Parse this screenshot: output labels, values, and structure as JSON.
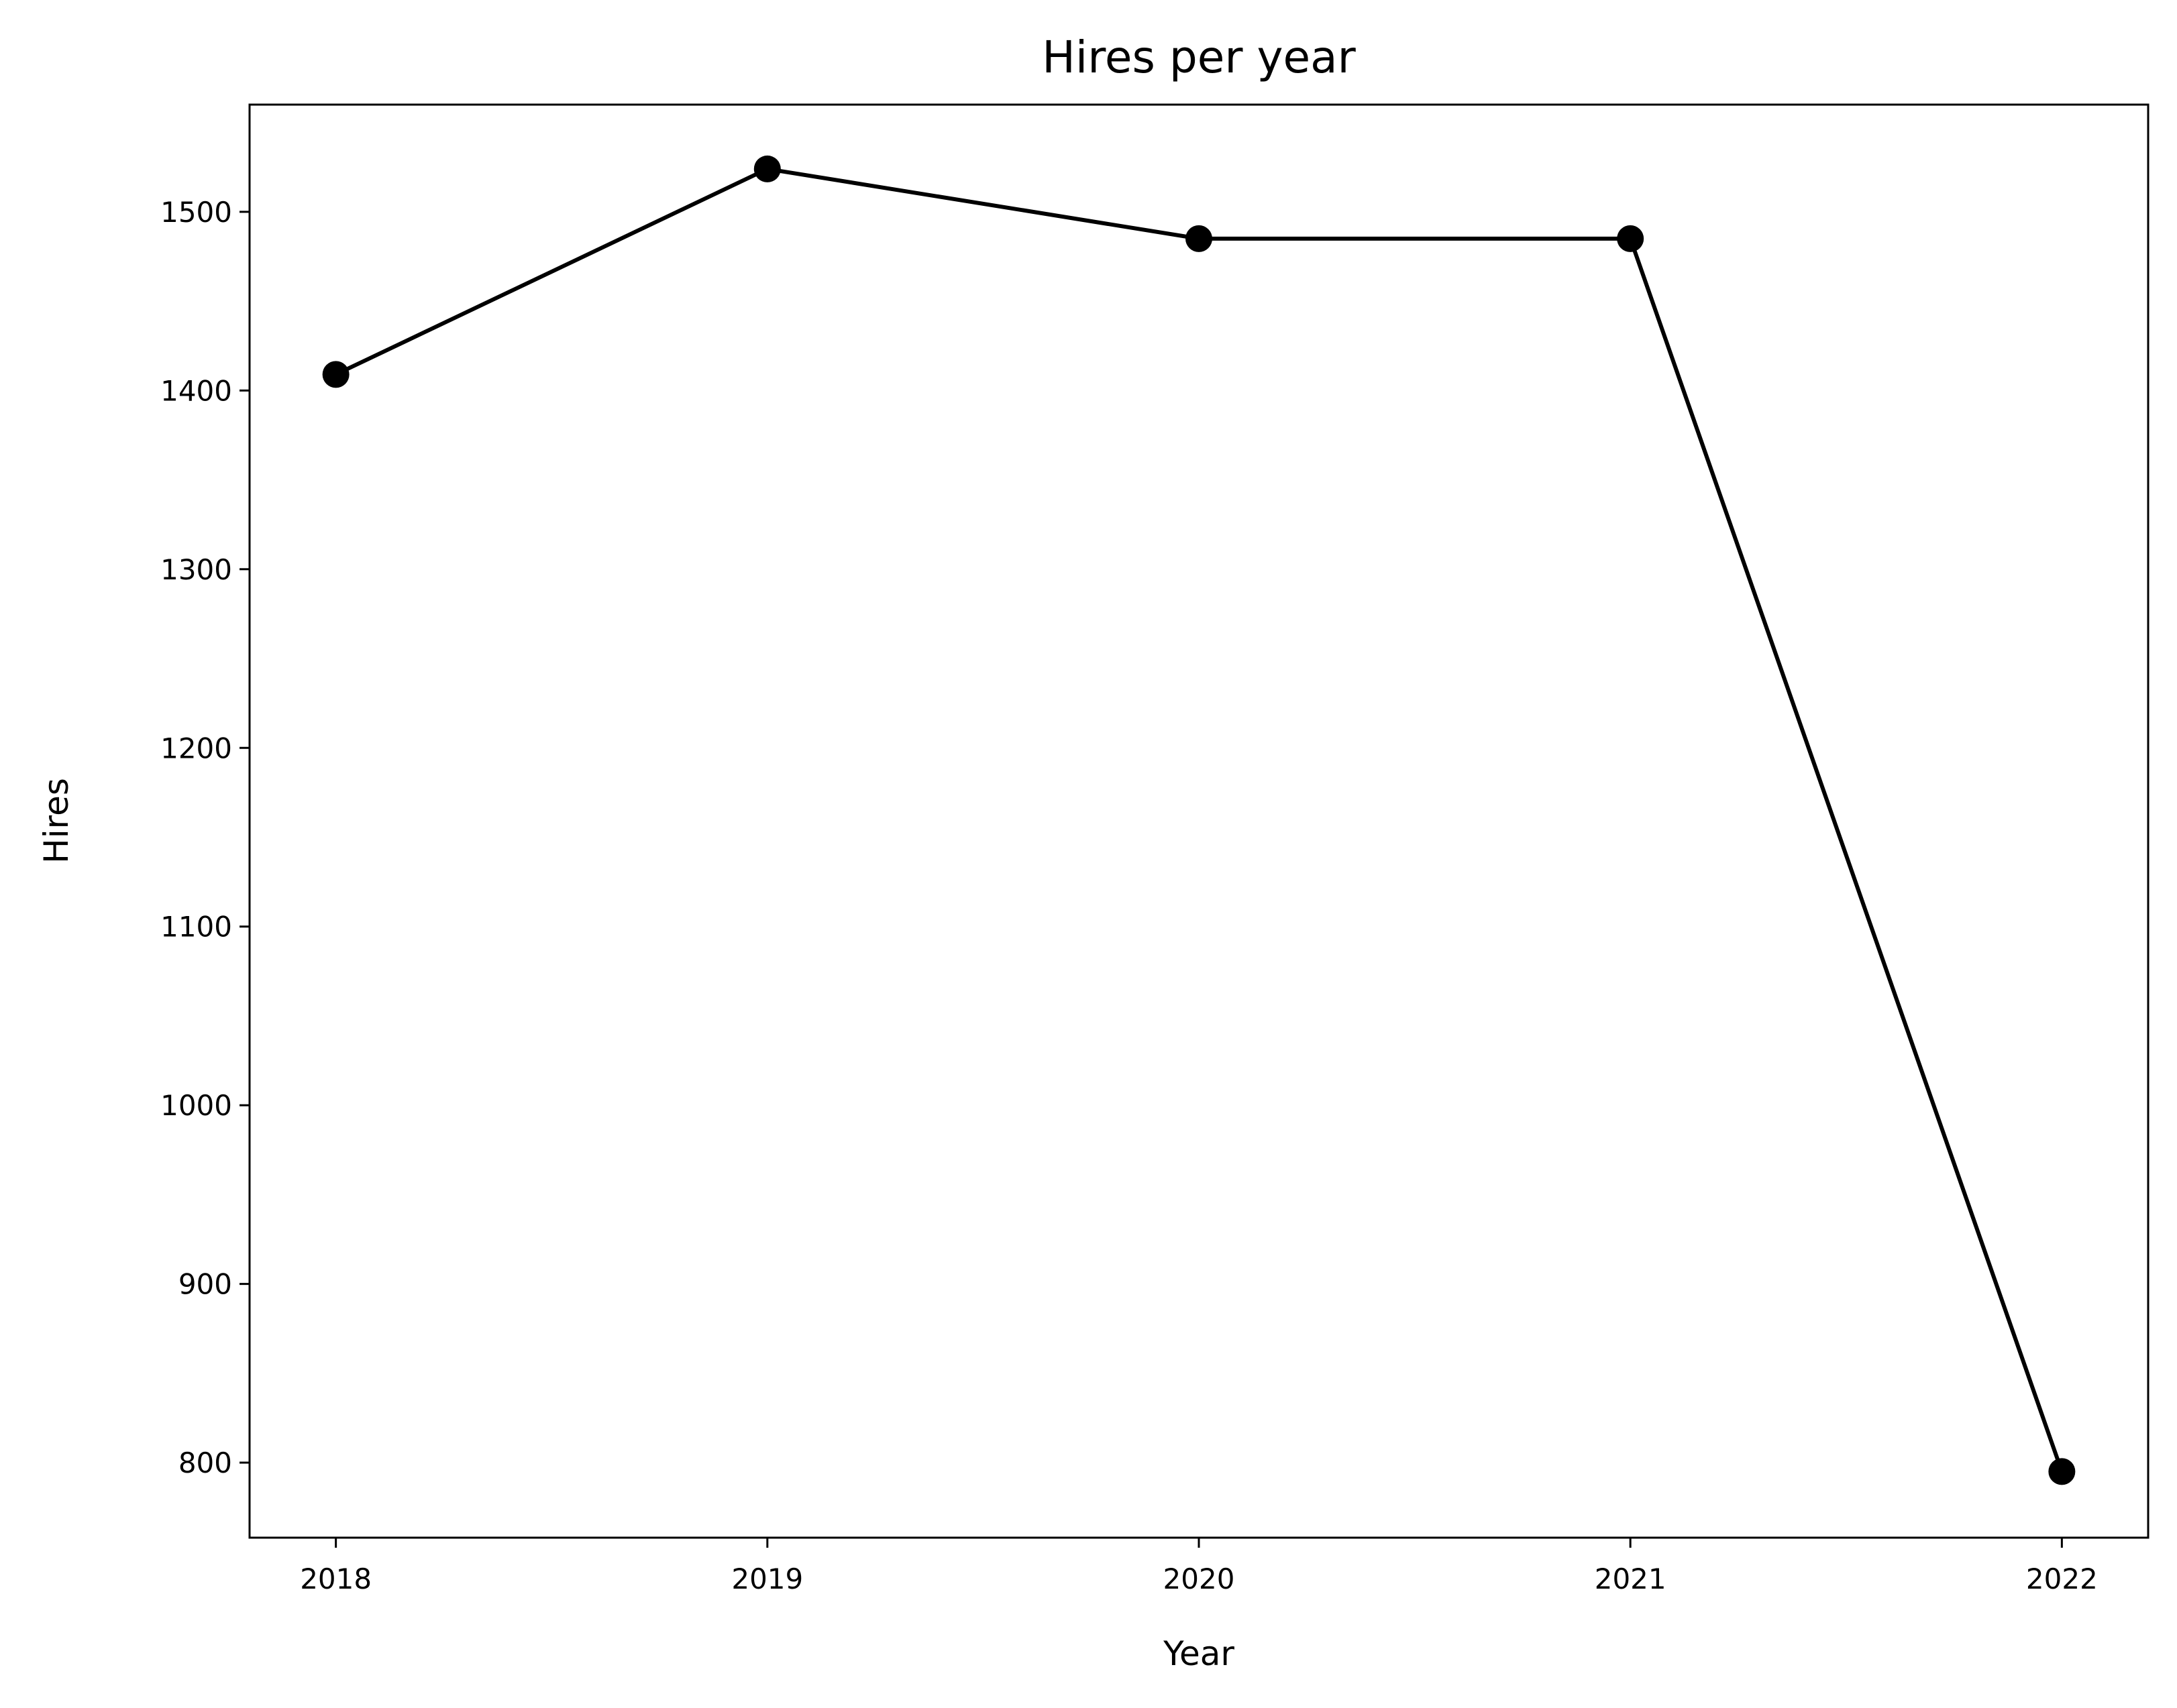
{
  "chart_data": {
    "type": "line",
    "title": "Hires per year",
    "xlabel": "Year",
    "ylabel": "Hires",
    "x": [
      2018,
      2019,
      2020,
      2021,
      2022
    ],
    "x_tick_labels": [
      "2018",
      "2019",
      "2020",
      "2021",
      "2022"
    ],
    "y_ticks": [
      800,
      900,
      1000,
      1100,
      1200,
      1300,
      1400,
      1500
    ],
    "y_tick_labels": [
      "800",
      "900",
      "1000",
      "1100",
      "1200",
      "1300",
      "1400",
      "1500"
    ],
    "xlim": [
      2017.8,
      2022.2
    ],
    "ylim": [
      758,
      1560
    ],
    "grid": false,
    "series": [
      {
        "values": [
          1409,
          1524,
          1485,
          1485,
          795
        ],
        "color": "#000000",
        "marker": "circle"
      }
    ]
  }
}
